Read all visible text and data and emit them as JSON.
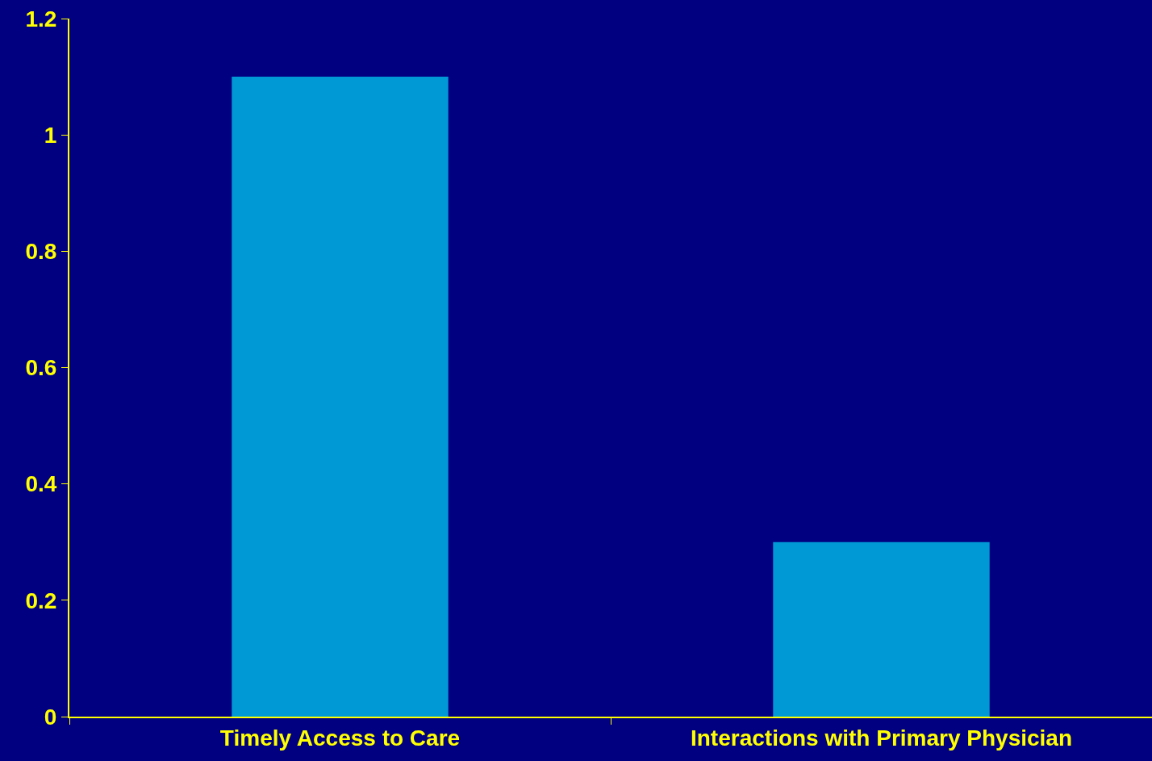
{
  "chart_data": {
    "type": "bar",
    "categories": [
      "Timely Access to Care",
      "Interactions with Primary Physician"
    ],
    "values": [
      1.1,
      0.3
    ],
    "color": "#0099d6",
    "ylim": [
      0,
      1.2
    ],
    "yticks": [
      0,
      0.2,
      0.4,
      0.6,
      0.8,
      1,
      1.2
    ],
    "grid": false
  }
}
